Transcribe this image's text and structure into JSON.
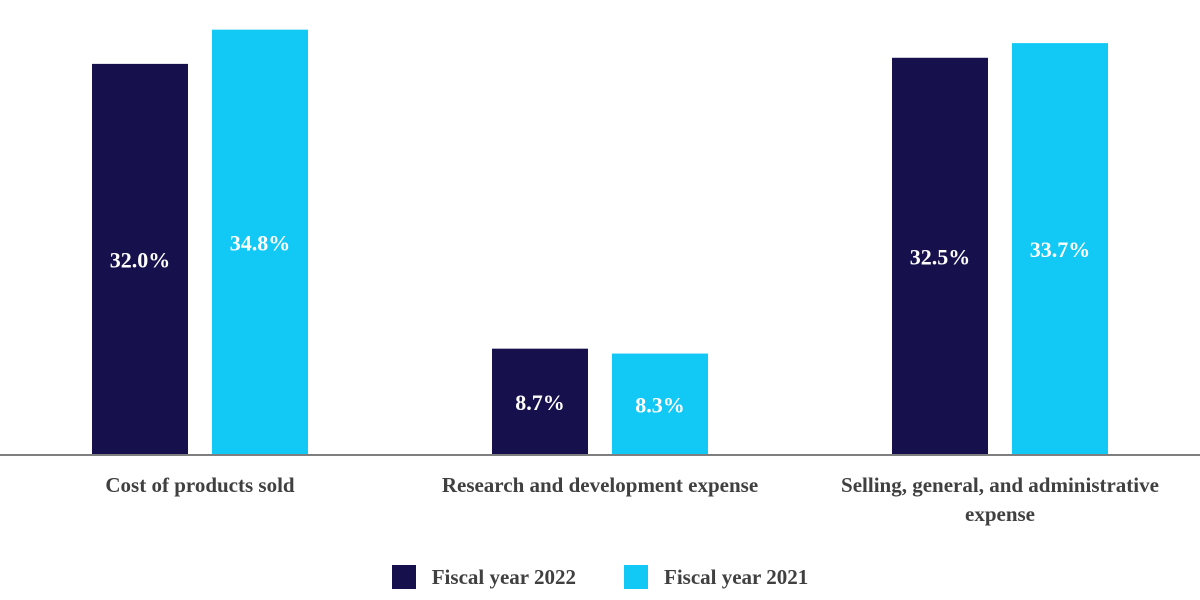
{
  "chart_data": {
    "type": "bar",
    "categories": [
      [
        "Cost of products sold"
      ],
      [
        "Research and development expense"
      ],
      [
        "Selling, general, and administrative",
        "expense"
      ]
    ],
    "series": [
      {
        "name": "Fiscal year 2022",
        "color": "#16104d",
        "values": [
          32.0,
          8.7,
          32.5
        ],
        "labels": [
          "32.0%",
          "8.7%",
          "32.5%"
        ]
      },
      {
        "name": "Fiscal year 2021",
        "color": "#12c8f5",
        "values": [
          34.8,
          8.3,
          33.7
        ],
        "labels": [
          "34.8%",
          "8.3%",
          "33.7%"
        ]
      }
    ],
    "value_unit": "%",
    "ylim": [
      0,
      36
    ],
    "grid": false,
    "legend_position": "bottom"
  }
}
